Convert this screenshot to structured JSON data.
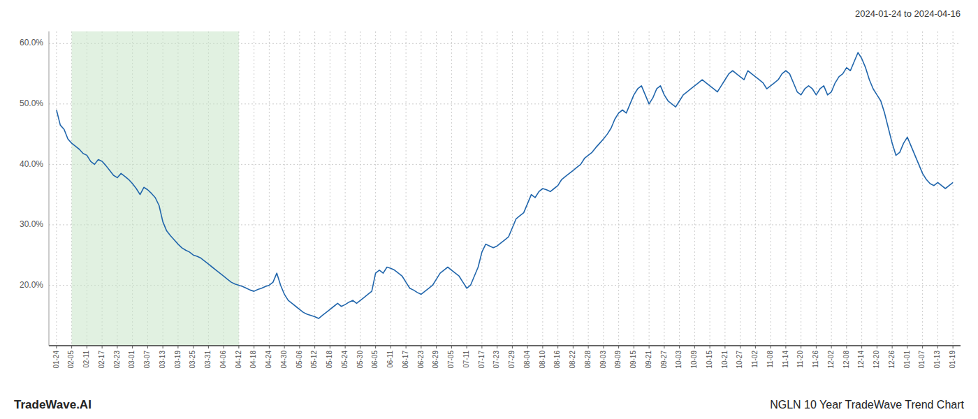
{
  "chart_data": {
    "type": "line",
    "title": "NGLN 10 Year TradeWave Trend Chart",
    "subtitle": "2024-01-24 to 2024-04-16",
    "annotations": [
      "TradeWave.AI"
    ],
    "color": "#2166ac",
    "grid": true,
    "xlim": [
      -0.5,
      59.5
    ],
    "xticks": [
      {
        "value": 0,
        "label": "01-24"
      },
      {
        "value": 1,
        "label": "02-05"
      },
      {
        "value": 2,
        "label": "02-11"
      },
      {
        "value": 3,
        "label": "02-17"
      },
      {
        "value": 4,
        "label": "02-23"
      },
      {
        "value": 5,
        "label": "03-01"
      },
      {
        "value": 6,
        "label": "03-07"
      },
      {
        "value": 7,
        "label": "03-13"
      },
      {
        "value": 8,
        "label": "03-19"
      },
      {
        "value": 9,
        "label": "03-25"
      },
      {
        "value": 10,
        "label": "03-31"
      },
      {
        "value": 11,
        "label": "04-06"
      },
      {
        "value": 12,
        "label": "04-12"
      },
      {
        "value": 13,
        "label": "04-18"
      },
      {
        "value": 14,
        "label": "04-24"
      },
      {
        "value": 15,
        "label": "04-30"
      },
      {
        "value": 16,
        "label": "05-06"
      },
      {
        "value": 17,
        "label": "05-12"
      },
      {
        "value": 18,
        "label": "05-18"
      },
      {
        "value": 19,
        "label": "05-24"
      },
      {
        "value": 20,
        "label": "05-30"
      },
      {
        "value": 21,
        "label": "06-05"
      },
      {
        "value": 22,
        "label": "06-11"
      },
      {
        "value": 23,
        "label": "06-17"
      },
      {
        "value": 24,
        "label": "06-23"
      },
      {
        "value": 25,
        "label": "06-29"
      },
      {
        "value": 26,
        "label": "07-05"
      },
      {
        "value": 27,
        "label": "07-11"
      },
      {
        "value": 28,
        "label": "07-17"
      },
      {
        "value": 29,
        "label": "07-23"
      },
      {
        "value": 30,
        "label": "07-29"
      },
      {
        "value": 31,
        "label": "08-04"
      },
      {
        "value": 32,
        "label": "08-10"
      },
      {
        "value": 33,
        "label": "08-16"
      },
      {
        "value": 34,
        "label": "08-22"
      },
      {
        "value": 35,
        "label": "08-28"
      },
      {
        "value": 36,
        "label": "09-03"
      },
      {
        "value": 37,
        "label": "09-09"
      },
      {
        "value": 38,
        "label": "09-15"
      },
      {
        "value": 39,
        "label": "09-21"
      },
      {
        "value": 40,
        "label": "09-27"
      },
      {
        "value": 41,
        "label": "10-03"
      },
      {
        "value": 42,
        "label": "10-09"
      },
      {
        "value": 43,
        "label": "10-15"
      },
      {
        "value": 44,
        "label": "10-21"
      },
      {
        "value": 45,
        "label": "10-27"
      },
      {
        "value": 46,
        "label": "11-02"
      },
      {
        "value": 47,
        "label": "11-08"
      },
      {
        "value": 48,
        "label": "11-14"
      },
      {
        "value": 49,
        "label": "11-20"
      },
      {
        "value": 50,
        "label": "11-26"
      },
      {
        "value": 51,
        "label": "12-02"
      },
      {
        "value": 52,
        "label": "12-08"
      },
      {
        "value": 53,
        "label": "12-14"
      },
      {
        "value": 54,
        "label": "12-20"
      },
      {
        "value": 55,
        "label": "12-26"
      },
      {
        "value": 56,
        "label": "01-01"
      },
      {
        "value": 57,
        "label": "01-07"
      },
      {
        "value": 58,
        "label": "01-13"
      },
      {
        "value": 59,
        "label": "01-19"
      }
    ],
    "ylim": [
      10.0,
      62.0
    ],
    "yticks": [
      {
        "value": 20.0,
        "label": "20.0%"
      },
      {
        "value": 30.0,
        "label": "30.0%"
      },
      {
        "value": 40.0,
        "label": "40.0%"
      },
      {
        "value": 50.0,
        "label": "50.0%"
      },
      {
        "value": 60.0,
        "label": "60.0%"
      }
    ],
    "span": {
      "x": [
        1,
        12
      ],
      "color": "#c8e6c8"
    },
    "x": [
      0,
      0.25,
      0.5,
      0.75,
      1,
      1.25,
      1.5,
      1.75,
      2,
      2.25,
      2.5,
      2.75,
      3,
      3.25,
      3.5,
      3.75,
      4,
      4.25,
      4.5,
      4.75,
      5,
      5.25,
      5.5,
      5.75,
      6,
      6.25,
      6.5,
      6.75,
      7,
      7.25,
      7.5,
      7.75,
      8,
      8.25,
      8.5,
      8.75,
      9,
      9.25,
      9.5,
      9.75,
      10,
      10.25,
      10.5,
      10.75,
      11,
      11.25,
      11.5,
      11.75,
      12,
      12.25,
      12.5,
      12.75,
      13,
      13.25,
      13.5,
      13.75,
      14,
      14.25,
      14.5,
      14.75,
      15,
      15.25,
      15.5,
      15.75,
      16,
      16.25,
      16.5,
      16.75,
      17,
      17.25,
      17.5,
      17.75,
      18,
      18.25,
      18.5,
      18.75,
      19,
      19.25,
      19.5,
      19.75,
      20,
      20.25,
      20.5,
      20.75,
      21,
      21.25,
      21.5,
      21.75,
      22,
      22.25,
      22.5,
      22.75,
      23,
      23.25,
      23.5,
      23.75,
      24,
      24.25,
      24.5,
      24.75,
      25,
      25.25,
      25.5,
      25.75,
      26,
      26.25,
      26.5,
      26.75,
      27,
      27.25,
      27.5,
      27.75,
      28,
      28.25,
      28.5,
      28.75,
      29,
      29.25,
      29.5,
      29.75,
      30,
      30.25,
      30.5,
      30.75,
      31,
      31.25,
      31.5,
      31.75,
      32,
      32.25,
      32.5,
      32.75,
      33,
      33.25,
      33.5,
      33.75,
      34,
      34.25,
      34.5,
      34.75,
      35,
      35.25,
      35.5,
      35.75,
      36,
      36.25,
      36.5,
      36.75,
      37,
      37.25,
      37.5,
      37.75,
      38,
      38.25,
      38.5,
      38.75,
      39,
      39.25,
      39.5,
      39.75,
      40,
      40.25,
      40.5,
      40.75,
      41,
      41.25,
      41.5,
      41.75,
      42,
      42.25,
      42.5,
      42.75,
      43,
      43.25,
      43.5,
      43.75,
      44,
      44.25,
      44.5,
      44.75,
      45,
      45.25,
      45.5,
      45.75,
      46,
      46.25,
      46.5,
      46.75,
      47,
      47.25,
      47.5,
      47.75,
      48,
      48.25,
      48.5,
      48.75,
      49,
      49.25,
      49.5,
      49.75,
      50,
      50.25,
      50.5,
      50.75,
      51,
      51.25,
      51.5,
      51.75,
      52,
      52.25,
      52.5,
      52.75,
      53,
      53.25,
      53.5,
      53.75,
      54,
      54.25,
      54.5,
      54.75,
      55,
      55.25,
      55.5,
      55.75,
      56,
      56.25,
      56.5,
      56.75,
      57,
      57.25,
      57.5,
      57.75,
      58,
      58.25,
      58.5,
      58.75,
      59
    ],
    "values": [
      49.0,
      46.5,
      45.8,
      44.2,
      43.5,
      43.0,
      42.5,
      41.8,
      41.5,
      40.5,
      40.0,
      40.8,
      40.5,
      39.8,
      39.0,
      38.2,
      37.8,
      38.5,
      38.0,
      37.5,
      36.8,
      36.0,
      35.0,
      36.2,
      35.8,
      35.2,
      34.5,
      33.2,
      30.5,
      29.0,
      28.2,
      27.5,
      26.8,
      26.2,
      25.8,
      25.5,
      25.0,
      24.8,
      24.5,
      24.0,
      23.5,
      23.0,
      22.5,
      22.0,
      21.5,
      21.0,
      20.5,
      20.2,
      20.0,
      19.8,
      19.5,
      19.2,
      19.0,
      19.3,
      19.5,
      19.8,
      20.0,
      20.5,
      22.0,
      20.0,
      18.5,
      17.5,
      17.0,
      16.5,
      16.0,
      15.5,
      15.2,
      15.0,
      14.8,
      14.5,
      15.0,
      15.5,
      16.0,
      16.5,
      17.0,
      16.5,
      16.8,
      17.2,
      17.5,
      17.0,
      17.5,
      18.0,
      18.5,
      19.0,
      22.0,
      22.5,
      22.0,
      23.0,
      22.8,
      22.5,
      22.0,
      21.5,
      20.5,
      19.5,
      19.2,
      18.8,
      18.5,
      19.0,
      19.5,
      20.0,
      21.0,
      22.0,
      22.5,
      23.0,
      22.5,
      22.0,
      21.5,
      20.5,
      19.5,
      20.0,
      21.5,
      23.0,
      25.5,
      26.8,
      26.5,
      26.2,
      26.5,
      27.0,
      27.5,
      28.0,
      29.5,
      31.0,
      31.5,
      32.0,
      33.5,
      35.0,
      34.5,
      35.5,
      36.0,
      35.8,
      35.5,
      36.0,
      36.5,
      37.5,
      38.0,
      38.5,
      39.0,
      39.5,
      40.0,
      41.0,
      41.5,
      42.0,
      42.8,
      43.5,
      44.2,
      45.0,
      46.0,
      47.5,
      48.5,
      49.0,
      48.5,
      50.0,
      51.5,
      52.5,
      53.0,
      51.5,
      50.0,
      51.0,
      52.5,
      53.0,
      51.5,
      50.5,
      50.0,
      49.5,
      50.5,
      51.5,
      52.0,
      52.5,
      53.0,
      53.5,
      54.0,
      53.5,
      53.0,
      52.5,
      52.0,
      53.0,
      54.0,
      55.0,
      55.5,
      55.0,
      54.5,
      54.0,
      55.5,
      55.0,
      54.5,
      54.0,
      53.5,
      52.5,
      53.0,
      53.5,
      54.0,
      55.0,
      55.5,
      55.0,
      53.5,
      52.0,
      51.5,
      52.5,
      53.0,
      52.5,
      51.5,
      52.5,
      53.0,
      51.5,
      52.0,
      53.5,
      54.5,
      55.0,
      56.0,
      55.5,
      57.0,
      58.5,
      57.5,
      56.0,
      54.0,
      52.5,
      51.5,
      50.5,
      48.5,
      46.0,
      43.5,
      41.5,
      42.0,
      43.5,
      44.5,
      43.0,
      41.5,
      40.0,
      38.5,
      37.5,
      36.8,
      36.5,
      37.0,
      36.5,
      36.0,
      36.5,
      37.0
    ]
  }
}
